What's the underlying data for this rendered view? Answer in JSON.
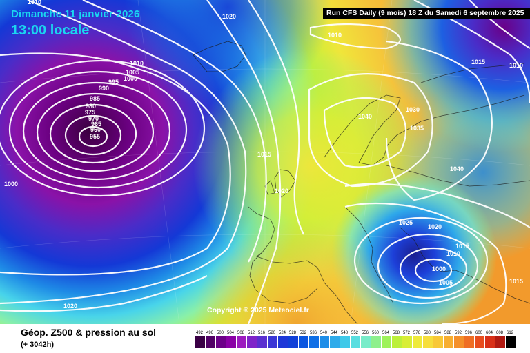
{
  "header": {
    "date": "Dimanche 11 janvier 2026",
    "time": "13:00 locale",
    "run": "Run CFS Daily (9 mois) 18 Z du Samedi 6 septembre 2025"
  },
  "copyright": "Copyright © 2025 Meteociel.fr",
  "footer": {
    "title": "Géop. Z500 & pression au sol",
    "lead": "(+ 3042h)"
  },
  "legend": {
    "values": [
      "492",
      "496",
      "500",
      "504",
      "508",
      "512",
      "516",
      "520",
      "524",
      "528",
      "532",
      "536",
      "540",
      "544",
      "548",
      "552",
      "556",
      "560",
      "564",
      "568",
      "572",
      "576",
      "580",
      "584",
      "588",
      "592",
      "596",
      "600",
      "604",
      "608",
      "612"
    ],
    "colors": [
      "#3a0045",
      "#520066",
      "#6c0088",
      "#8a00a6",
      "#9c1bbf",
      "#7f23c9",
      "#5a2fd0",
      "#3a36d6",
      "#1d37d8",
      "#1040d8",
      "#0b56e0",
      "#0f6fe6",
      "#1d8de8",
      "#2eabea",
      "#3fc9e9",
      "#59dee0",
      "#78ecc9",
      "#8ef08c",
      "#9ef25a",
      "#bcf03a",
      "#d8ee36",
      "#eeea3a",
      "#f6de3c",
      "#f8c836",
      "#f7ae30",
      "#f4902a",
      "#ef6e24",
      "#e84d1e",
      "#d83018",
      "#b01a12",
      "#000000"
    ]
  },
  "isobars": [
    "1020",
    "1010",
    "1010",
    "1010",
    "1005",
    "1000",
    "995",
    "990",
    "985",
    "980",
    "975",
    "970",
    "965",
    "960",
    "955",
    "1000",
    "1015",
    "1020",
    "1040",
    "1030",
    "1035",
    "1040",
    "1015",
    "1010",
    "1025",
    "1020",
    "1015",
    "1010",
    "1000",
    "1005",
    "1015",
    "1020"
  ]
}
